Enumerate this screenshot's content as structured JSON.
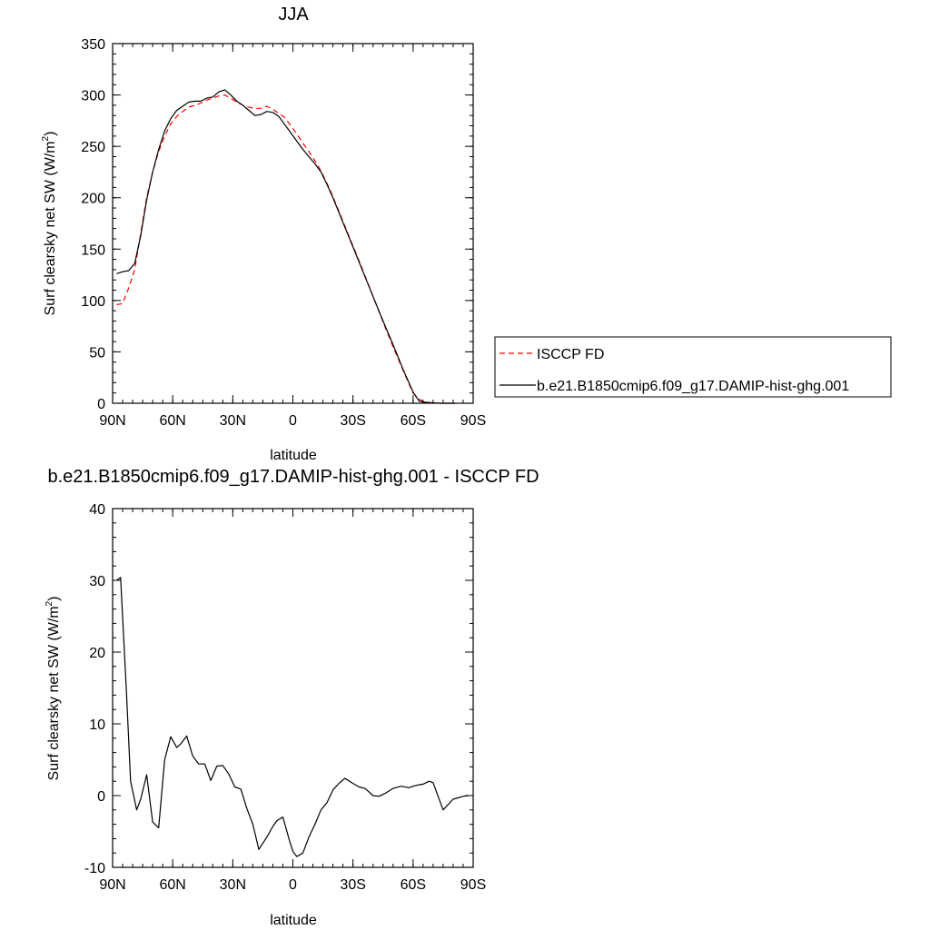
{
  "chart_data": [
    {
      "type": "line",
      "title": "JJA",
      "xlabel": "latitude",
      "ylabel": "Surf clearsky net SW (W/m",
      "ylabel_sup": "2",
      "ylabel_tail": ")",
      "xlim": [
        90,
        -90
      ],
      "ylim": [
        0,
        350
      ],
      "xticks": [
        {
          "value": 90,
          "label": "90N"
        },
        {
          "value": 60,
          "label": "60N"
        },
        {
          "value": 30,
          "label": "30N"
        },
        {
          "value": 0,
          "label": "0"
        },
        {
          "value": -30,
          "label": "30S"
        },
        {
          "value": -60,
          "label": "60S"
        },
        {
          "value": -90,
          "label": "90S"
        }
      ],
      "yticks": [
        0,
        50,
        100,
        150,
        200,
        250,
        300,
        350
      ],
      "legend_position": "right",
      "series": [
        {
          "name": "ISCCP FD",
          "color": "#ff0000",
          "dash": "dashed",
          "x": [
            88,
            85,
            82,
            79,
            76,
            73,
            70,
            67,
            64,
            61,
            58,
            55,
            52,
            49,
            46,
            43,
            40,
            37,
            34,
            31,
            28,
            25,
            22,
            19,
            16,
            13,
            10,
            7,
            4,
            1,
            -2,
            -5,
            -8,
            -11,
            -14,
            -17,
            -20,
            -25,
            -30,
            -35,
            -40,
            -45,
            -50,
            -55,
            -60,
            -63,
            -66,
            -69,
            -72,
            -75,
            -78,
            -81
          ],
          "y": [
            96,
            97,
            112,
            130,
            165,
            200,
            225,
            245,
            260,
            272,
            279,
            284,
            288,
            290,
            292,
            295,
            297,
            299,
            300,
            297,
            293,
            290,
            288,
            287,
            287,
            289,
            286,
            282,
            278,
            270,
            262,
            253,
            245,
            236,
            226,
            214,
            201,
            177,
            153,
            129,
            104,
            79,
            55,
            32,
            10,
            4,
            1,
            0.3,
            0.1,
            0,
            0,
            0
          ]
        },
        {
          "name": "b.e21.B1850cmip6.f09_g17.DAMIP-hist-ghg.001",
          "color": "#000000",
          "dash": "solid",
          "x": [
            88,
            85,
            82,
            79,
            76,
            73,
            70,
            67,
            64,
            61,
            58,
            55,
            52,
            49,
            46,
            43,
            40,
            37,
            34,
            31,
            28,
            25,
            22,
            19,
            16,
            13,
            10,
            7,
            4,
            1,
            -2,
            -5,
            -8,
            -11,
            -14,
            -17,
            -20,
            -25,
            -30,
            -35,
            -40,
            -45,
            -50,
            -55,
            -60,
            -63,
            -66,
            -69,
            -72,
            -75,
            -78,
            -81
          ],
          "y": [
            126,
            128,
            129,
            136,
            163,
            198,
            225,
            247,
            265,
            277,
            285,
            289,
            293,
            294,
            294,
            297,
            298,
            303,
            305,
            300,
            294,
            290,
            285,
            280,
            281,
            284,
            283,
            279,
            271,
            263,
            255,
            247,
            240,
            233,
            225,
            213,
            200,
            176,
            152,
            128,
            104,
            80,
            57,
            33,
            11,
            2,
            1,
            0.5,
            0.1,
            0,
            0,
            0
          ]
        }
      ]
    },
    {
      "type": "line",
      "title": "b.e21.B1850cmip6.f09_g17.DAMIP-hist-ghg.001 - ISCCP FD",
      "xlabel": "latitude",
      "ylabel": "Surf clearsky net SW (W/m",
      "ylabel_sup": "2",
      "ylabel_tail": ")",
      "xlim": [
        90,
        -90
      ],
      "ylim": [
        -10,
        40
      ],
      "xticks": [
        {
          "value": 90,
          "label": "90N"
        },
        {
          "value": 60,
          "label": "60N"
        },
        {
          "value": 30,
          "label": "30N"
        },
        {
          "value": 0,
          "label": "0"
        },
        {
          "value": -30,
          "label": "30S"
        },
        {
          "value": -60,
          "label": "60S"
        },
        {
          "value": -90,
          "label": "90S"
        }
      ],
      "yticks": [
        -10,
        0,
        10,
        20,
        30,
        40
      ],
      "series": [
        {
          "color": "#000000",
          "dash": "solid",
          "x": [
            88,
            86,
            83,
            81,
            78,
            76,
            73,
            70,
            67,
            64,
            61,
            58,
            56,
            53,
            50,
            47,
            44,
            41,
            38,
            35,
            32,
            29,
            26,
            23,
            20,
            17,
            13,
            10,
            8,
            5,
            2,
            0,
            -2,
            -5,
            -8,
            -11,
            -14,
            -17,
            -20,
            -23,
            -26,
            -30,
            -33,
            -36,
            -40,
            -43,
            -46,
            -50,
            -54,
            -58,
            -60,
            -63,
            -65,
            -68,
            -70,
            -75,
            -80,
            -85,
            -88
          ],
          "y": [
            30,
            30.4,
            14,
            2,
            -2,
            -0.5,
            2.9,
            -3.7,
            -4.5,
            5,
            8.2,
            6.7,
            7.2,
            8.3,
            5.5,
            4.4,
            4.4,
            2.1,
            4.1,
            4.2,
            3,
            1.2,
            0.9,
            -1.8,
            -4,
            -7.5,
            -5.8,
            -4.3,
            -3.5,
            -3,
            -6,
            -7.8,
            -8.5,
            -8,
            -5.8,
            -4,
            -2,
            -1,
            0.8,
            1.7,
            2.4,
            1.7,
            1.2,
            1,
            0,
            -0.1,
            0.3,
            1,
            1.3,
            1.1,
            1.3,
            1.5,
            1.6,
            2,
            1.8,
            -2,
            -0.5,
            -0.1,
            0
          ]
        }
      ]
    }
  ]
}
